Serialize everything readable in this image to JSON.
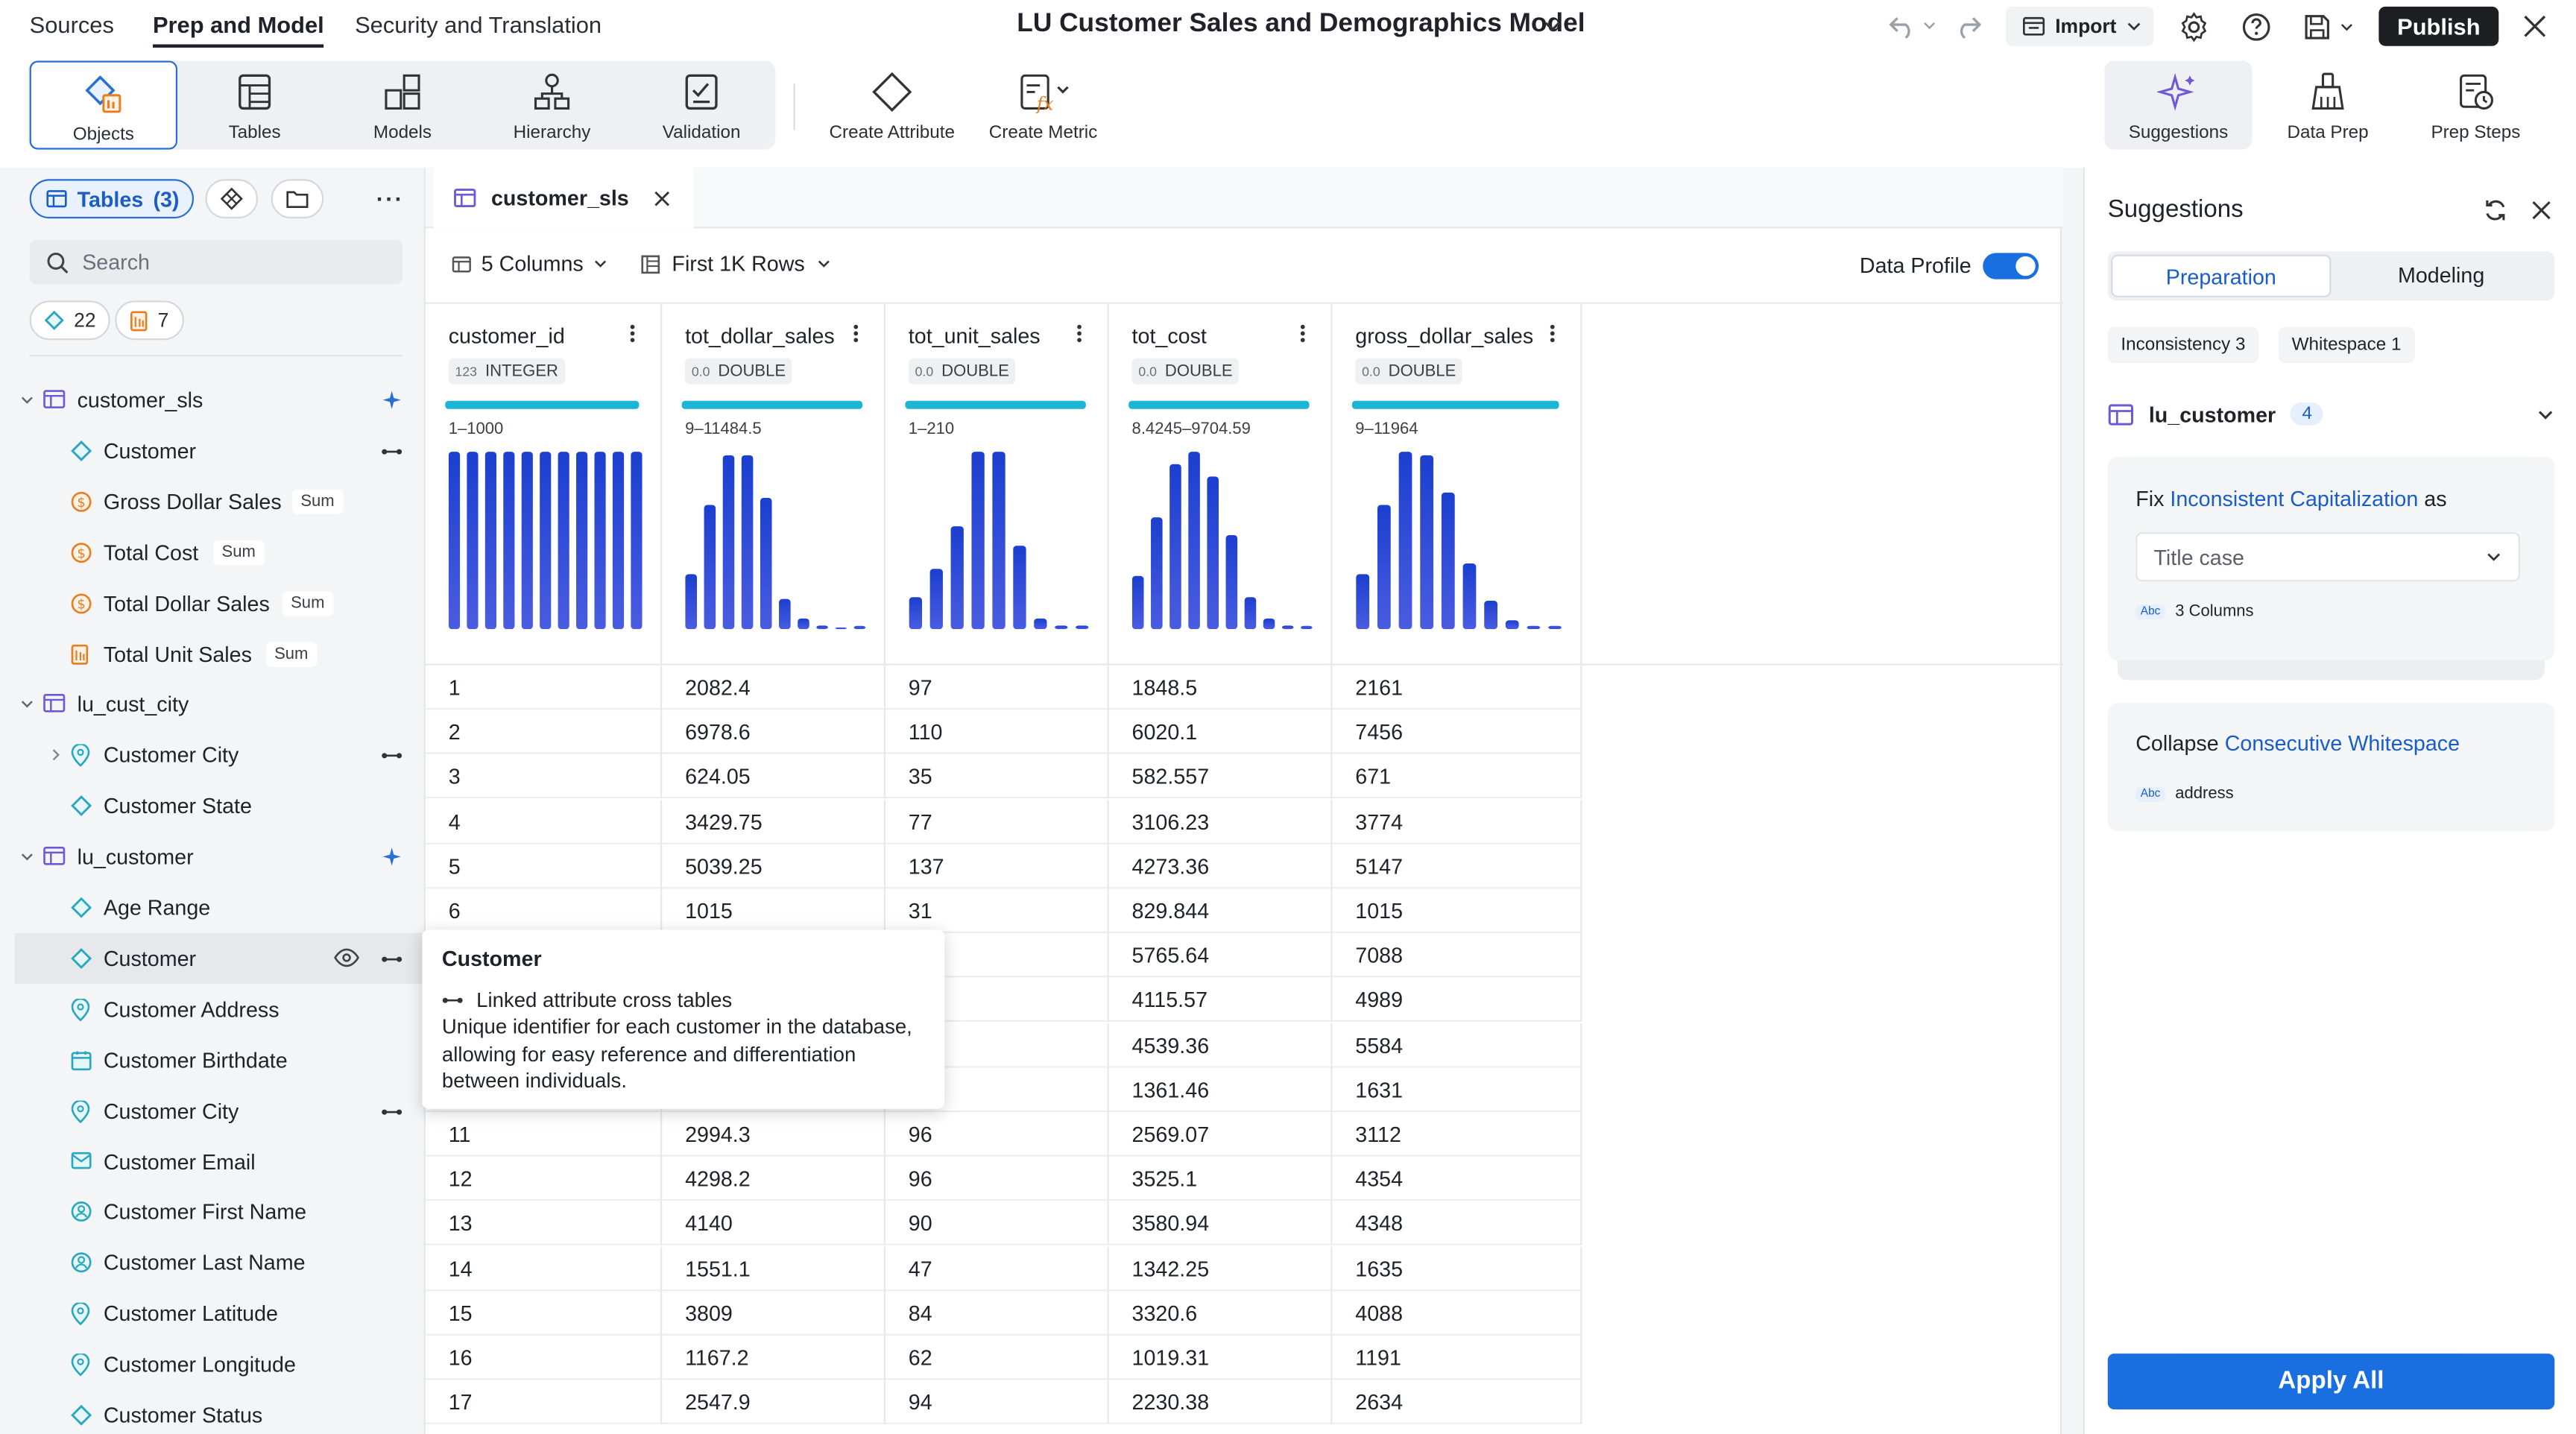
{
  "top_nav": {
    "tabs": [
      "Sources",
      "Prep and Model",
      "Security and Translation"
    ],
    "active_tab": "Prep and Model",
    "title": "LU Customer Sales and Demographics Model",
    "import_label": "Import",
    "publish_label": "Publish"
  },
  "toolbar": {
    "group_items": [
      "Objects",
      "Tables",
      "Models",
      "Hierarchy",
      "Validation"
    ],
    "selected": "Objects",
    "create_attribute": "Create Attribute",
    "create_metric": "Create Metric",
    "right_items": [
      "Suggestions",
      "Data Prep",
      "Prep Steps"
    ]
  },
  "left_panel": {
    "tables_pill": "Tables",
    "tables_count": "(3)",
    "search_placeholder": "Search",
    "attribute_count": "22",
    "metric_count": "7",
    "tree": [
      {
        "label": "customer_sls",
        "kind": "table"
      },
      {
        "label": "Customer",
        "kind": "attribute"
      },
      {
        "label": "Gross Dollar Sales",
        "kind": "metric",
        "badge": "Sum"
      },
      {
        "label": "Total Cost",
        "kind": "metric",
        "badge": "Sum"
      },
      {
        "label": "Total Dollar Sales",
        "kind": "metric",
        "badge": "Sum"
      },
      {
        "label": "Total Unit Sales",
        "kind": "metric2",
        "badge": "Sum"
      },
      {
        "label": "lu_cust_city",
        "kind": "table"
      },
      {
        "label": "Customer City",
        "kind": "geo"
      },
      {
        "label": "Customer State",
        "kind": "attribute"
      },
      {
        "label": "lu_customer",
        "kind": "table"
      },
      {
        "label": "Age Range",
        "kind": "attribute"
      },
      {
        "label": "Customer",
        "kind": "attribute"
      },
      {
        "label": "Customer Address",
        "kind": "geo"
      },
      {
        "label": "Customer Birthdate",
        "kind": "date"
      },
      {
        "label": "Customer City",
        "kind": "geo"
      },
      {
        "label": "Customer Email",
        "kind": "email"
      },
      {
        "label": "Customer First Name",
        "kind": "person"
      },
      {
        "label": "Customer Last Name",
        "kind": "person"
      },
      {
        "label": "Customer Latitude",
        "kind": "geo"
      },
      {
        "label": "Customer Longitude",
        "kind": "geo"
      },
      {
        "label": "Customer Status",
        "kind": "attribute"
      }
    ]
  },
  "main": {
    "tab_label": "customer_sls",
    "columns_selector": "5 Columns",
    "rows_selector": "First 1K Rows",
    "data_profile_label": "Data Profile",
    "data_profile_on": true,
    "columns": [
      {
        "name": "customer_id",
        "type_token": "123",
        "type": "INTEGER",
        "range": "1–1000",
        "hist": [
          1,
          1,
          1,
          1,
          1,
          1,
          1,
          1,
          1,
          1,
          1
        ]
      },
      {
        "name": "tot_dollar_sales",
        "type_token": "0.0",
        "type": "DOUBLE",
        "range": "9–11484.5",
        "hist": [
          0.31,
          0.7,
          0.98,
          0.98,
          0.74,
          0.17,
          0.06,
          0.02,
          0,
          0.01
        ]
      },
      {
        "name": "tot_unit_sales",
        "type_token": "0.0",
        "type": "DOUBLE",
        "range": "1–210",
        "hist": [
          0.18,
          0.34,
          0.58,
          1.0,
          1.0,
          0.47,
          0.06,
          0.02,
          0.02
        ]
      },
      {
        "name": "tot_cost",
        "type_token": "0.0",
        "type": "DOUBLE",
        "range": "8.4245–9704.59",
        "hist": [
          0.3,
          0.63,
          0.93,
          1.0,
          0.86,
          0.53,
          0.18,
          0.06,
          0.02,
          0.01
        ]
      },
      {
        "name": "gross_dollar_sales",
        "type_token": "0.0",
        "type": "DOUBLE",
        "range": "9–11964",
        "hist": [
          0.31,
          0.7,
          1.0,
          0.98,
          0.77,
          0.37,
          0.16,
          0.05,
          0.01,
          0.01
        ]
      }
    ],
    "rows": [
      [
        "1",
        "2082.4",
        "97",
        "1848.5",
        "2161"
      ],
      [
        "2",
        "6978.6",
        "110",
        "6020.1",
        "7456"
      ],
      [
        "3",
        "624.05",
        "35",
        "582.557",
        "671"
      ],
      [
        "4",
        "3429.75",
        "77",
        "3106.23",
        "3774"
      ],
      [
        "5",
        "5039.25",
        "137",
        "4273.36",
        "5147"
      ],
      [
        "6",
        "1015",
        "31",
        "829.844",
        "1015"
      ],
      [
        "7",
        "",
        "",
        "5765.64",
        "7088"
      ],
      [
        "8",
        "",
        "",
        "4115.57",
        "4989"
      ],
      [
        "9",
        "",
        "",
        "4539.36",
        "5584"
      ],
      [
        "10",
        "",
        "",
        "1361.46",
        "1631"
      ],
      [
        "11",
        "2994.3",
        "96",
        "2569.07",
        "3112"
      ],
      [
        "12",
        "4298.2",
        "96",
        "3525.1",
        "4354"
      ],
      [
        "13",
        "4140",
        "90",
        "3580.94",
        "4348"
      ],
      [
        "14",
        "1551.1",
        "47",
        "1342.25",
        "1635"
      ],
      [
        "15",
        "3809",
        "84",
        "3320.6",
        "4088"
      ],
      [
        "16",
        "1167.2",
        "62",
        "1019.31",
        "1191"
      ],
      [
        "17",
        "2547.9",
        "94",
        "2230.38",
        "2634"
      ]
    ]
  },
  "tooltip": {
    "title": "Customer",
    "link_line": "Linked attribute cross tables",
    "description": "Unique identifier for each customer in the database, allowing for easy reference and differentiation between individuals."
  },
  "right_panel": {
    "title": "Suggestions",
    "tabs": [
      "Preparation",
      "Modeling"
    ],
    "active_tab": "Preparation",
    "chips": [
      "Inconsistency 3",
      "Whitespace 1"
    ],
    "table_name": "lu_customer",
    "table_count": "4",
    "card1": {
      "prefix": "Fix",
      "link": "Inconsistent Capitalization",
      "suffix": "as",
      "select_value": "Title case",
      "abc": "Abc",
      "scope": "3 Columns"
    },
    "card2": {
      "prefix": "Collapse",
      "link": "Consecutive Whitespace",
      "abc": "Abc",
      "scope": "address"
    },
    "apply_label": "Apply All"
  },
  "colors": {
    "accent": "#1a6fe0",
    "histogram": "#2f4fd6",
    "profile_bar": "#1cb5d6",
    "publish_bg": "#1d1f23"
  }
}
